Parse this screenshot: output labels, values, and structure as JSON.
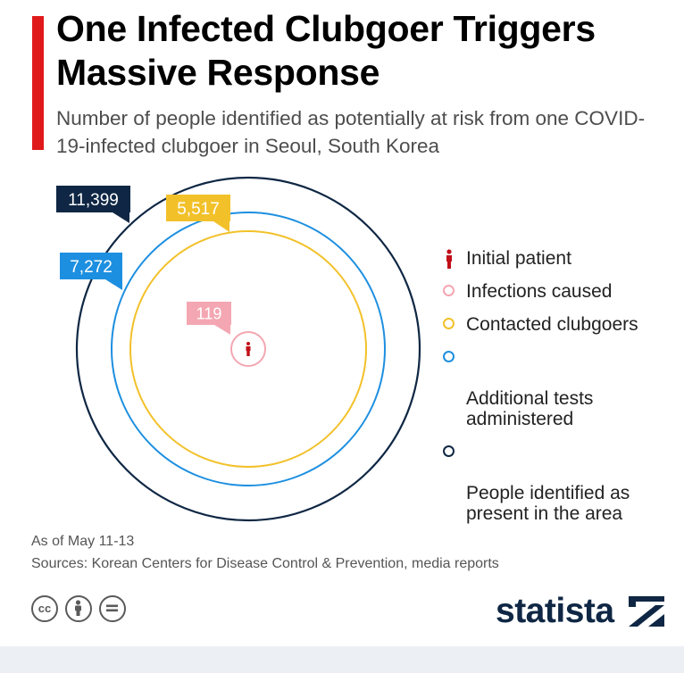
{
  "header": {
    "title": "One Infected Clubgoer Triggers Massive Response",
    "subtitle": "Number of people identified as potentially at risk from one COVID-19-infected clubgoer in Seoul, South Korea"
  },
  "chart_data": {
    "type": "nested-circles",
    "series": [
      {
        "name": "Initial patient",
        "value": null,
        "color": "#c00f18",
        "icon": "person-icon"
      },
      {
        "name": "Infections caused",
        "value": 119,
        "label": "119",
        "color": "#f4a7b2"
      },
      {
        "name": "Contacted clubgoers",
        "value": 5517,
        "label": "5,517",
        "color": "#f2c12a"
      },
      {
        "name": "Additional tests administered",
        "value": 7272,
        "label": "7,272",
        "color": "#1d8fe0"
      },
      {
        "name": "People identified as present in the area",
        "value": 11399,
        "label": "11,399",
        "color": "#0f2744"
      }
    ],
    "legend_placement": "right"
  },
  "legend": {
    "items": [
      {
        "label": "Initial patient",
        "color": "#c00f18",
        "icon": "person-icon"
      },
      {
        "label": "Infections caused",
        "color": "#f4a7b2"
      },
      {
        "label": "Contacted clubgoers",
        "color": "#f2c12a"
      },
      {
        "label": "Additional tests\nadministered",
        "color": "#1d8fe0"
      },
      {
        "label": "People identified as\npresent in the area",
        "color": "#0f2744"
      }
    ]
  },
  "footer": {
    "as_of": "As of May 11-13",
    "sources": "Sources: Korean Centers for Disease Control & Prevention, media reports",
    "license_icons": [
      "cc-icon",
      "attribution-icon",
      "no-derivatives-icon"
    ],
    "brand": "statista"
  }
}
